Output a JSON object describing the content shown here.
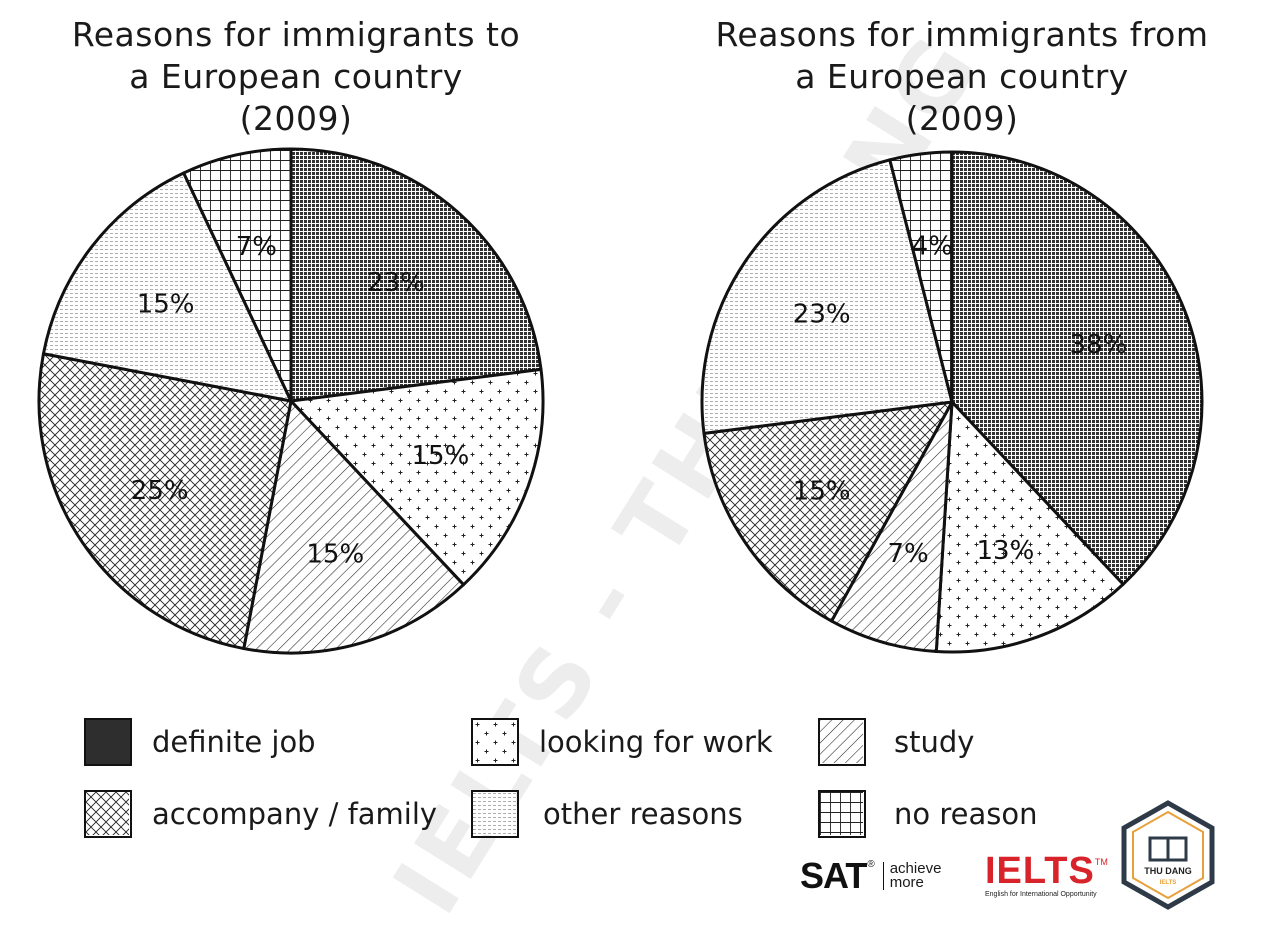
{
  "legend": [
    {
      "key": "definite_job",
      "label": "definite job"
    },
    {
      "key": "looking_for_work",
      "label": "looking for work"
    },
    {
      "key": "study",
      "label": "study"
    },
    {
      "key": "accompany_family",
      "label": "accompany / family"
    },
    {
      "key": "other_reasons",
      "label": "other reasons"
    },
    {
      "key": "no_reason",
      "label": "no reason"
    }
  ],
  "chart_data": [
    {
      "type": "pie",
      "title": "Reasons for immigrants to a European country (2009)",
      "title_lines": [
        "Reasons for immigrants to",
        "a European country",
        "(2009)"
      ],
      "slices": [
        {
          "key": "definite_job",
          "label": "definite job",
          "value": 23,
          "text": "23%"
        },
        {
          "key": "looking_for_work",
          "label": "looking for work",
          "value": 15,
          "text": "15%"
        },
        {
          "key": "study",
          "label": "study",
          "value": 15,
          "text": "15%"
        },
        {
          "key": "accompany_family",
          "label": "accompany / family",
          "value": 25,
          "text": "25%"
        },
        {
          "key": "other_reasons",
          "label": "other reasons",
          "value": 15,
          "text": "15%"
        },
        {
          "key": "no_reason",
          "label": "no reason",
          "value": 7,
          "text": "7%"
        }
      ]
    },
    {
      "type": "pie",
      "title": "Reasons for immigrants from a European country (2009)",
      "title_lines": [
        "Reasons for immigrants from",
        "a European country",
        "(2009)"
      ],
      "slices": [
        {
          "key": "definite_job",
          "label": "definite job",
          "value": 38,
          "text": "38%"
        },
        {
          "key": "looking_for_work",
          "label": "looking for work",
          "value": 13,
          "text": "13%"
        },
        {
          "key": "study",
          "label": "study",
          "value": 7,
          "text": "7%"
        },
        {
          "key": "accompany_family",
          "label": "accompany / family",
          "value": 15,
          "text": "15%"
        },
        {
          "key": "other_reasons",
          "label": "other reasons",
          "value": 23,
          "text": "23%"
        },
        {
          "key": "no_reason",
          "label": "no reason",
          "value": 4,
          "text": "4%"
        }
      ]
    }
  ],
  "watermark": "IELTS - THU DANG",
  "logos": {
    "sat": {
      "main": "SAT",
      "reg": "®",
      "sub_1": "achieve",
      "sub_2": "more"
    },
    "ielts": {
      "main": "IELTS",
      "tm": "TM",
      "sub": "English for International Opportunity"
    },
    "badge": {
      "name": "THU DANG",
      "sub": "IELTS"
    }
  }
}
